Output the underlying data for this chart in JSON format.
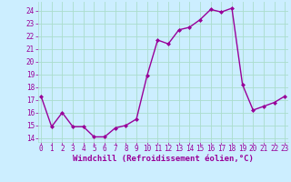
{
  "x": [
    0,
    1,
    2,
    3,
    4,
    5,
    6,
    7,
    8,
    9,
    10,
    11,
    12,
    13,
    14,
    15,
    16,
    17,
    18,
    19,
    20,
    21,
    22,
    23
  ],
  "y": [
    17.3,
    14.9,
    16.0,
    14.9,
    14.9,
    14.1,
    14.1,
    14.8,
    15.0,
    15.5,
    18.9,
    21.7,
    21.4,
    22.5,
    22.7,
    23.3,
    24.1,
    23.9,
    24.2,
    18.2,
    16.2,
    16.5,
    16.8,
    17.3
  ],
  "line_color": "#990099",
  "marker": "D",
  "marker_size": 2,
  "line_width": 1.0,
  "bg_color": "#cceeff",
  "grid_color": "#aaddcc",
  "xlabel": "Windchill (Refroidissement éolien,°C)",
  "xlabel_color": "#990099",
  "xlabel_fontsize": 6.5,
  "tick_color": "#990099",
  "tick_fontsize": 5.5,
  "ylim": [
    13.7,
    24.7
  ],
  "yticks": [
    14,
    15,
    16,
    17,
    18,
    19,
    20,
    21,
    22,
    23,
    24
  ],
  "xticks": [
    0,
    1,
    2,
    3,
    4,
    5,
    6,
    7,
    8,
    9,
    10,
    11,
    12,
    13,
    14,
    15,
    16,
    17,
    18,
    19,
    20,
    21,
    22,
    23
  ],
  "xlim": [
    -0.3,
    23.3
  ]
}
